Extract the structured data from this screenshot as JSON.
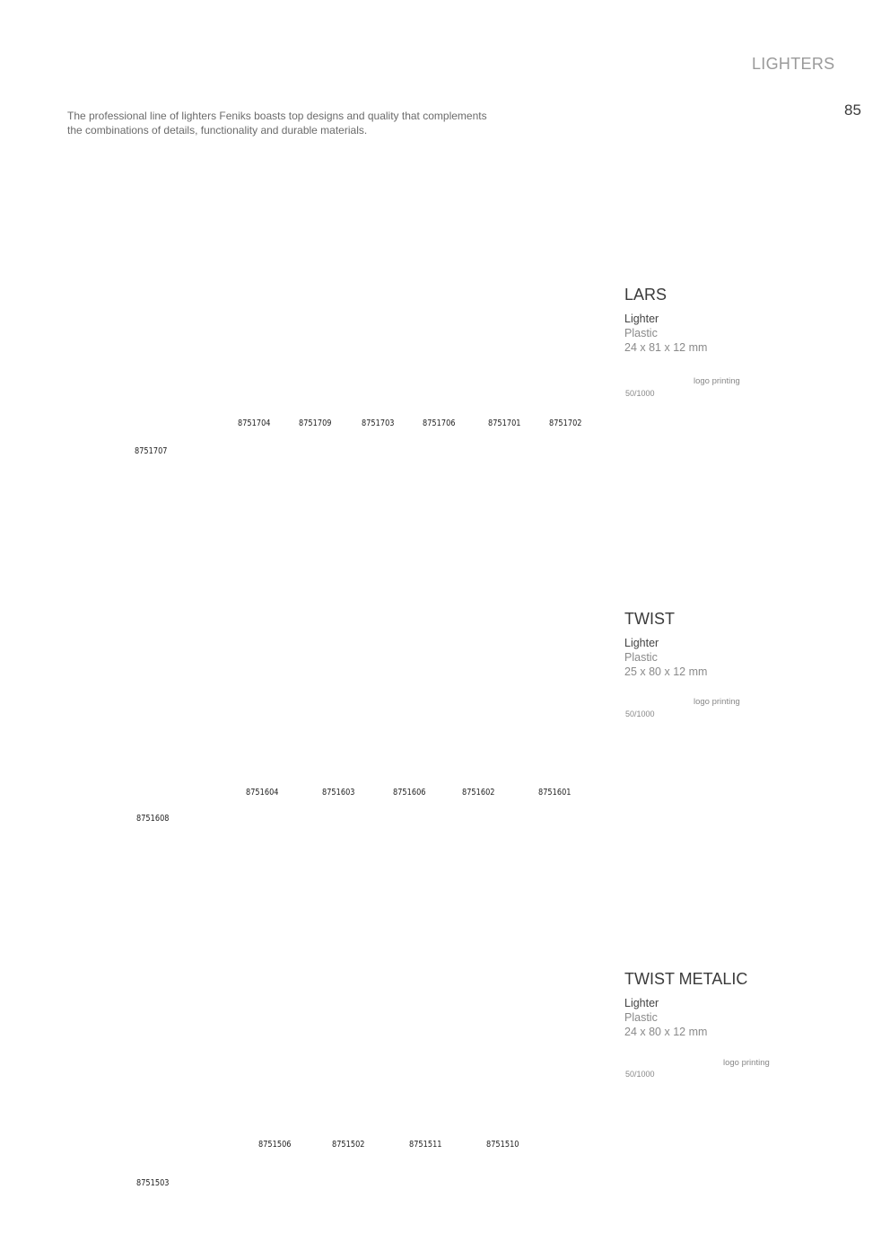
{
  "header": {
    "section_title": "LIGHTERS",
    "page_number": "85"
  },
  "intro": {
    "line1": "The professional line of lighters Feniks boasts top designs and quality that complements",
    "line2": "the combinations of details, functionality and durable materials."
  },
  "products": [
    {
      "name": "LARS",
      "type": "Lighter",
      "material": "Plastic",
      "size": "24 x 81 x 12 mm",
      "logo_printing": "logo printing",
      "packing": "50/1000",
      "codes": [
        "8751704",
        "8751709",
        "8751703",
        "8751706",
        "8751701",
        "8751702"
      ],
      "featured_code": "8751707"
    },
    {
      "name": "TWIST",
      "type": "Lighter",
      "material": "Plastic",
      "size": "25 x 80 x 12 mm",
      "logo_printing": "logo printing",
      "packing": "50/1000",
      "codes": [
        "8751604",
        "8751603",
        "8751606",
        "8751602",
        "8751601"
      ],
      "featured_code": "8751608"
    },
    {
      "name": "TWIST METALIC",
      "type": "Lighter",
      "material": "Plastic",
      "size": "24 x 80 x 12 mm",
      "logo_printing": "logo printing",
      "packing": "50/1000",
      "codes": [
        "8751506",
        "8751502",
        "8751511",
        "8751510"
      ],
      "featured_code": "8751503"
    }
  ]
}
